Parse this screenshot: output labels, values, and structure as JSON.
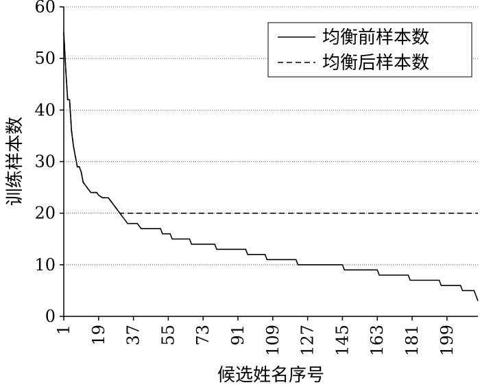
{
  "chart_data": {
    "type": "line",
    "xlabel": "候选姓名序号",
    "ylabel": "训练样本数",
    "xlim": [
      1,
      215
    ],
    "ylim": [
      0,
      60
    ],
    "xticks": [
      "1",
      "19",
      "37",
      "55",
      "73",
      "91",
      "109",
      "127",
      "145",
      "163",
      "181",
      "199"
    ],
    "yticks": [
      "0",
      "10",
      "20",
      "30",
      "40",
      "50",
      "60"
    ],
    "grid": "horizontal dotted",
    "legend_position": "top-right",
    "series": [
      {
        "name": "均衡前样本数",
        "style": "solid",
        "points": [
          [
            1,
            55
          ],
          [
            2,
            48
          ],
          [
            3,
            42
          ],
          [
            4,
            42
          ],
          [
            5,
            36
          ],
          [
            6,
            33
          ],
          [
            7,
            31
          ],
          [
            8,
            29
          ],
          [
            9,
            29
          ],
          [
            10,
            28
          ],
          [
            11,
            26
          ],
          [
            12,
            25.5
          ],
          [
            13,
            25
          ],
          [
            14,
            24.5
          ],
          [
            15,
            24
          ],
          [
            18,
            24
          ],
          [
            19,
            23.5
          ],
          [
            21,
            23
          ],
          [
            24,
            23
          ],
          [
            25,
            22.5
          ],
          [
            26,
            22
          ],
          [
            27,
            21.5
          ],
          [
            28,
            21
          ],
          [
            29,
            20.5
          ],
          [
            30,
            20
          ],
          [
            31,
            19.5
          ],
          [
            32,
            19
          ],
          [
            33,
            18.5
          ],
          [
            34,
            18
          ],
          [
            39,
            18
          ],
          [
            40,
            17.5
          ],
          [
            41,
            17
          ],
          [
            51,
            17
          ],
          [
            52,
            16
          ],
          [
            56,
            16
          ],
          [
            57,
            15
          ],
          [
            66,
            15
          ],
          [
            67,
            14
          ],
          [
            79,
            14
          ],
          [
            80,
            13
          ],
          [
            95,
            13
          ],
          [
            96,
            12
          ],
          [
            105,
            12
          ],
          [
            106,
            11
          ],
          [
            121,
            11
          ],
          [
            122,
            10
          ],
          [
            145,
            10
          ],
          [
            146,
            9
          ],
          [
            163,
            9
          ],
          [
            164,
            8
          ],
          [
            179,
            8
          ],
          [
            180,
            7
          ],
          [
            195,
            7
          ],
          [
            196,
            6
          ],
          [
            206,
            6
          ],
          [
            207,
            5
          ],
          [
            213,
            5
          ],
          [
            214,
            4
          ],
          [
            215,
            3
          ]
        ]
      },
      {
        "name": "均衡后样本数",
        "style": "dashed",
        "points": [
          [
            1,
            55
          ],
          [
            2,
            48
          ],
          [
            3,
            42
          ],
          [
            4,
            42
          ],
          [
            5,
            36
          ],
          [
            6,
            33
          ],
          [
            7,
            31
          ],
          [
            8,
            29
          ],
          [
            9,
            29
          ],
          [
            10,
            28
          ],
          [
            11,
            26
          ],
          [
            12,
            25.5
          ],
          [
            13,
            25
          ],
          [
            14,
            24.5
          ],
          [
            15,
            24
          ],
          [
            18,
            24
          ],
          [
            19,
            23.5
          ],
          [
            21,
            23
          ],
          [
            24,
            23
          ],
          [
            25,
            22.5
          ],
          [
            26,
            22
          ],
          [
            27,
            21.5
          ],
          [
            28,
            21
          ],
          [
            29,
            20.5
          ],
          [
            30,
            20
          ],
          [
            215,
            20
          ]
        ]
      }
    ]
  }
}
